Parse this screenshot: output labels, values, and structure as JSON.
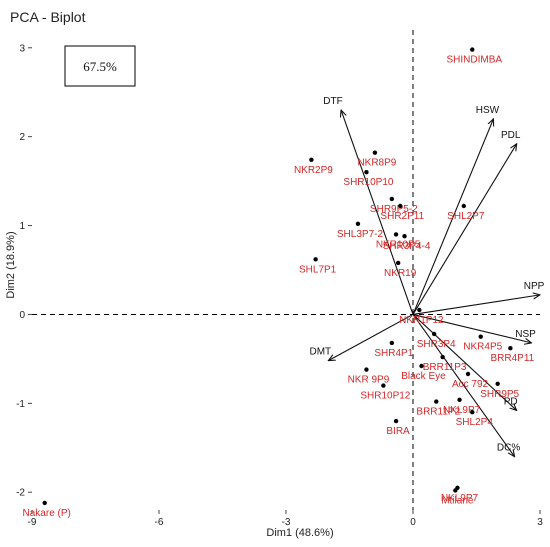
{
  "chart_data": {
    "type": "scatter",
    "title": "PCA - Biplot",
    "xlabel": "Dim1 (48.6%)",
    "ylabel": "Dim2 (18.9%)",
    "xlim": [
      -9.0,
      3.0
    ],
    "ylim": [
      -2.2,
      3.2
    ],
    "xticks": [
      -9,
      -6,
      -3,
      0,
      3
    ],
    "yticks": [
      -2,
      -1,
      0,
      1,
      2,
      3
    ],
    "xtick_labels": [
      "-9",
      "-6",
      "-3",
      "0",
      "3"
    ],
    "ytick_labels": [
      "-2",
      "-1",
      "0",
      "1",
      "2",
      "3"
    ],
    "grid": false,
    "annotation": "67.5%",
    "individuals": [
      {
        "label": "SHINDIMBA",
        "x": 1.4,
        "y": 2.98
      },
      {
        "label": "NKR2P9",
        "x": -2.4,
        "y": 1.74
      },
      {
        "label": "NKR8P9",
        "x": -0.9,
        "y": 1.82
      },
      {
        "label": "SHR10P10",
        "x": -1.1,
        "y": 1.6
      },
      {
        "label": "SHR9P5-2",
        "x": -0.5,
        "y": 1.3
      },
      {
        "label": "SHR2P11",
        "x": -0.3,
        "y": 1.22
      },
      {
        "label": "SHL2P7",
        "x": 1.2,
        "y": 1.22
      },
      {
        "label": "SHL3P7-2",
        "x": -1.3,
        "y": 1.02
      },
      {
        "label": "SHR3P4-4",
        "x": -0.2,
        "y": 0.88
      },
      {
        "label": "NKR10P5",
        "x": -0.4,
        "y": 0.9
      },
      {
        "label": "SHL7P1",
        "x": -2.3,
        "y": 0.62
      },
      {
        "label": "NKR19",
        "x": -0.35,
        "y": 0.58
      },
      {
        "label": "NKR1P12",
        "x": 0.15,
        "y": 0.05
      },
      {
        "label": "SHR4P1",
        "x": -0.5,
        "y": -0.32
      },
      {
        "label": "SHR3P4",
        "x": 0.5,
        "y": -0.22
      },
      {
        "label": "NKR4P5",
        "x": 1.6,
        "y": -0.25
      },
      {
        "label": "BRR4P11",
        "x": 2.3,
        "y": -0.38
      },
      {
        "label": "BRR11P3",
        "x": 0.7,
        "y": -0.48
      },
      {
        "label": "NKR 9P9",
        "x": -1.1,
        "y": -0.62
      },
      {
        "label": "Black Eye",
        "x": 0.2,
        "y": -0.58
      },
      {
        "label": "Acc 792",
        "x": 1.3,
        "y": -0.67
      },
      {
        "label": "SHR9P5",
        "x": 2.0,
        "y": -0.78
      },
      {
        "label": "SHR10P12",
        "x": -0.7,
        "y": -0.8
      },
      {
        "label": "BRR11P2",
        "x": 0.55,
        "y": -0.98
      },
      {
        "label": "NKL9P7",
        "x": 1.1,
        "y": -0.96
      },
      {
        "label": "SHL2P4",
        "x": 1.4,
        "y": -1.1
      },
      {
        "label": "BIRA",
        "x": -0.4,
        "y": -1.2
      },
      {
        "label": "NKL9P7",
        "x": 1.05,
        "y": -1.95
      },
      {
        "label": "Mtilane",
        "x": 1.0,
        "y": -1.98
      },
      {
        "label": "Nakare (P)",
        "x": -8.7,
        "y": -2.12
      }
    ],
    "variables": [
      {
        "name": "DTF",
        "x": -1.7,
        "y": 2.3
      },
      {
        "name": "HSW",
        "x": 1.9,
        "y": 2.2
      },
      {
        "name": "PDL",
        "x": 2.45,
        "y": 1.92
      },
      {
        "name": "NPP",
        "x": 3.0,
        "y": 0.22
      },
      {
        "name": "NSP",
        "x": 2.8,
        "y": -0.32
      },
      {
        "name": "DMT",
        "x": -2.0,
        "y": -0.52
      },
      {
        "name": "PD",
        "x": 2.45,
        "y": -1.08
      },
      {
        "name": "DC%",
        "x": 2.4,
        "y": -1.6
      }
    ]
  }
}
